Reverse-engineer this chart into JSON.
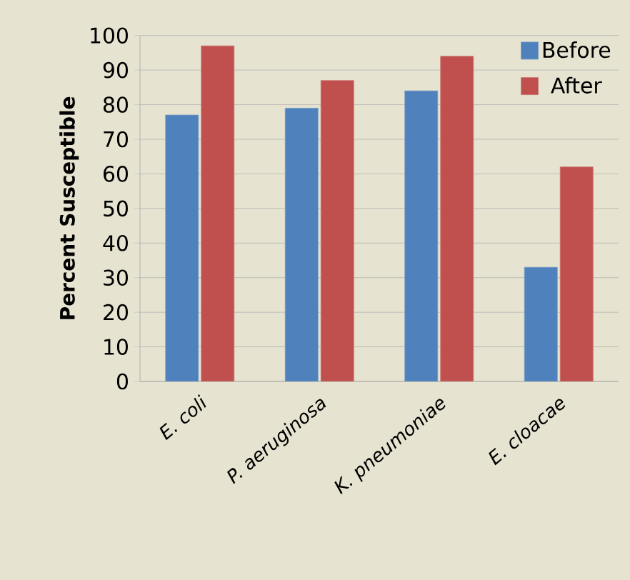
{
  "chart_data": {
    "type": "bar",
    "ylabel": "Percent Susceptible",
    "categories": [
      "E. coli",
      "P. aeruginosa",
      "K. pneumoniae",
      "E. cloacae"
    ],
    "series": [
      {
        "name": "Before",
        "color": "#4f81bd",
        "values": [
          77,
          79,
          84,
          33
        ]
      },
      {
        "name": "After",
        "color": "#c0504d",
        "values": [
          97,
          87,
          94,
          62
        ]
      }
    ],
    "ylim": [
      0,
      100
    ],
    "yticks": [
      0,
      10,
      20,
      30,
      40,
      50,
      60,
      70,
      80,
      90,
      100
    ],
    "grid": "y",
    "legend": "top right"
  }
}
